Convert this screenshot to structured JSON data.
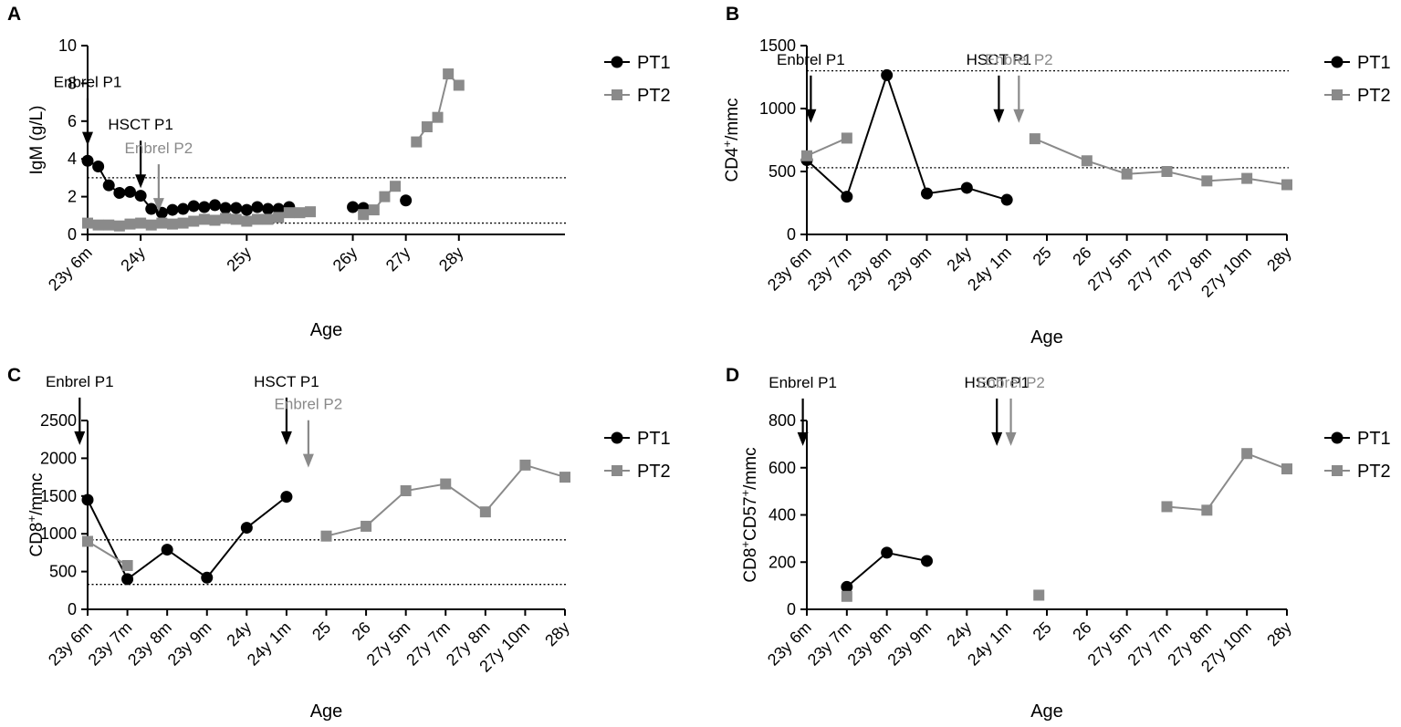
{
  "colors": {
    "pt1": "#000000",
    "pt2": "#8a8a8a"
  },
  "charts": [
    {
      "id": "A",
      "type": "line",
      "letter": "A",
      "ylabel": "IgM (g/L)",
      "xlabel": "Age",
      "xlim": [
        0,
        4.5
      ],
      "ylim": [
        0,
        10
      ],
      "yticks": [
        "0",
        "2",
        "4",
        "6",
        "8",
        "10"
      ],
      "ytick_values": [
        0,
        2,
        4,
        6,
        8,
        10
      ],
      "xtick_values": [
        0,
        0.5,
        1.5,
        2.5,
        3.0,
        3.5
      ],
      "xtick_labels": [
        "23y 6m",
        "24y",
        "25y",
        "26y",
        "27y",
        "28y"
      ],
      "ref_lines": [
        3,
        0.6
      ],
      "legend": [
        "PT1",
        "PT2"
      ],
      "annotations": [
        {
          "label": "Enbrel P1",
          "x": 0,
          "top": 4.8,
          "series": "pt1"
        },
        {
          "label": "HSCT P1",
          "x": 0.5,
          "top": 2.55,
          "series": "pt1"
        },
        {
          "label": "Enbrel P2",
          "x": 0.67,
          "top": 1.3,
          "series": "pt2"
        }
      ],
      "series": [
        {
          "name": "PT1",
          "key": "pt1",
          "marker": "circle",
          "segments": [
            [
              [
                0,
                3.9
              ],
              [
                0.1,
                3.6
              ],
              [
                0.2,
                2.6
              ],
              [
                0.3,
                2.2
              ],
              [
                0.4,
                2.25
              ],
              [
                0.5,
                2.05
              ],
              [
                0.6,
                1.35
              ],
              [
                0.7,
                1.15
              ],
              [
                0.8,
                1.3
              ],
              [
                0.9,
                1.35
              ],
              [
                1.0,
                1.5
              ],
              [
                1.1,
                1.45
              ],
              [
                1.2,
                1.55
              ],
              [
                1.3,
                1.4
              ],
              [
                1.4,
                1.4
              ],
              [
                1.5,
                1.3
              ],
              [
                1.6,
                1.45
              ],
              [
                1.7,
                1.35
              ],
              [
                1.8,
                1.35
              ],
              [
                1.9,
                1.45
              ]
            ],
            [
              [
                2.5,
                1.45
              ],
              [
                2.6,
                1.4
              ]
            ],
            [
              [
                3.0,
                1.8
              ]
            ]
          ]
        },
        {
          "name": "PT2",
          "key": "pt2",
          "marker": "square",
          "segments": [
            [
              [
                0,
                0.6
              ],
              [
                0.1,
                0.5
              ],
              [
                0.2,
                0.5
              ],
              [
                0.3,
                0.45
              ],
              [
                0.4,
                0.55
              ],
              [
                0.5,
                0.6
              ],
              [
                0.6,
                0.5
              ],
              [
                0.7,
                0.6
              ],
              [
                0.8,
                0.55
              ],
              [
                0.9,
                0.6
              ],
              [
                1.0,
                0.7
              ],
              [
                1.1,
                0.8
              ],
              [
                1.2,
                0.75
              ],
              [
                1.3,
                0.85
              ],
              [
                1.4,
                0.8
              ],
              [
                1.5,
                0.7
              ],
              [
                1.6,
                0.8
              ],
              [
                1.7,
                0.8
              ],
              [
                1.8,
                0.9
              ],
              [
                1.9,
                1.15
              ],
              [
                2.0,
                1.15
              ],
              [
                2.1,
                1.2
              ]
            ],
            [
              [
                2.6,
                1.05
              ],
              [
                2.7,
                1.3
              ],
              [
                2.8,
                2.0
              ],
              [
                2.9,
                2.55
              ]
            ],
            [
              [
                3.1,
                4.9
              ],
              [
                3.2,
                5.7
              ],
              [
                3.3,
                6.2
              ],
              [
                3.4,
                8.5
              ],
              [
                3.5,
                7.9
              ]
            ]
          ]
        }
      ]
    },
    {
      "id": "B",
      "type": "line",
      "letter": "B",
      "ylabel_main": "CD4",
      "ylabel_sup": "+",
      "ylabel_tail": "/mmc",
      "xlabel": "Age",
      "xlim": [
        0,
        12
      ],
      "ylim": [
        0,
        1500
      ],
      "yticks": [
        "0",
        "500",
        "1000",
        "1500"
      ],
      "ytick_values": [
        0,
        500,
        1000,
        1500
      ],
      "xtick_values": [
        0,
        1,
        2,
        3,
        4,
        5,
        6,
        7,
        8,
        9,
        10,
        11,
        12
      ],
      "xtick_labels": [
        "23y 6m",
        "23y 7m",
        "23y 8m",
        "23y 9m",
        "24y",
        "24y 1m",
        "25",
        "26",
        "27y 5m",
        "27y 7m",
        "27y 8m",
        "27y 10m",
        "28y"
      ],
      "ref_lines": [
        1300,
        530
      ],
      "legend": [
        "PT1",
        "PT2"
      ],
      "annotations": [
        {
          "label": "Enbrel P1",
          "x": 0.1,
          "top": 900,
          "series": "pt1"
        },
        {
          "label": "HSCT P1",
          "x": 4.8,
          "top": 900,
          "series": "pt1"
        },
        {
          "label": "Enbrel P2",
          "x": 5.3,
          "top": 900,
          "series": "pt2"
        }
      ],
      "series": [
        {
          "name": "PT1",
          "key": "pt1",
          "marker": "circle",
          "segments": [
            [
              [
                0,
                590
              ],
              [
                1,
                300
              ],
              [
                2,
                1265
              ],
              [
                3,
                325
              ],
              [
                4,
                370
              ],
              [
                5,
                275
              ]
            ]
          ]
        },
        {
          "name": "PT2",
          "key": "pt2",
          "marker": "square",
          "segments": [
            [
              [
                0,
                625
              ],
              [
                1,
                765
              ]
            ],
            [
              [
                5.7,
                760
              ],
              [
                7,
                585
              ],
              [
                8,
                480
              ],
              [
                9,
                500
              ],
              [
                10,
                425
              ],
              [
                11,
                445
              ],
              [
                12,
                395
              ]
            ]
          ]
        }
      ]
    },
    {
      "id": "C",
      "type": "line",
      "letter": "C",
      "ylabel_main": "CD8",
      "ylabel_sup": "+",
      "ylabel_tail": "/mmc",
      "xlabel": "Age",
      "xlim": [
        0,
        12
      ],
      "ylim": [
        0,
        2500
      ],
      "yticks": [
        "0",
        "500",
        "1000",
        "1500",
        "2000",
        "2500"
      ],
      "ytick_values": [
        0,
        500,
        1000,
        1500,
        2000,
        2500
      ],
      "xtick_values": [
        0,
        1,
        2,
        3,
        4,
        5,
        6,
        7,
        8,
        9,
        10,
        11,
        12
      ],
      "xtick_labels": [
        "23y 6m",
        "23y 7m",
        "23y 8m",
        "23y 9m",
        "24y",
        "24y 1m",
        "25",
        "26",
        "27y 5m",
        "27y 7m",
        "27y 8m",
        "27y 10m",
        "28y"
      ],
      "ref_lines": [
        920,
        330
      ],
      "legend": [
        "PT1",
        "PT2"
      ],
      "annotations": [
        {
          "label": "Enbrel P1",
          "x": -0.2,
          "top": 2200,
          "series": "pt1"
        },
        {
          "label": "HSCT P1",
          "x": 5.0,
          "top": 2200,
          "series": "pt1"
        },
        {
          "label": "Enbrel P2",
          "x": 5.55,
          "top": 1900,
          "series": "pt2"
        }
      ],
      "series": [
        {
          "name": "PT1",
          "key": "pt1",
          "marker": "circle",
          "segments": [
            [
              [
                0,
                1450
              ],
              [
                1,
                400
              ],
              [
                2,
                790
              ],
              [
                3,
                420
              ],
              [
                4,
                1080
              ],
              [
                5,
                1490
              ]
            ]
          ]
        },
        {
          "name": "PT2",
          "key": "pt2",
          "marker": "square",
          "segments": [
            [
              [
                0,
                900
              ],
              [
                1,
                580
              ]
            ],
            [
              [
                6,
                970
              ],
              [
                7,
                1100
              ],
              [
                8,
                1570
              ],
              [
                9,
                1660
              ],
              [
                10,
                1290
              ],
              [
                11,
                1910
              ],
              [
                12,
                1750
              ]
            ]
          ]
        }
      ]
    },
    {
      "id": "D",
      "type": "line",
      "letter": "D",
      "ylabel_main": "CD8",
      "ylabel_sup": "+",
      "ylabel_mid": "CD57",
      "ylabel_sup2": "+",
      "ylabel_tail": "/mmc",
      "xlabel": "Age",
      "xlim": [
        0,
        12
      ],
      "ylim": [
        0,
        800
      ],
      "yticks": [
        "0",
        "200",
        "400",
        "600",
        "800"
      ],
      "ytick_values": [
        0,
        200,
        400,
        600,
        800
      ],
      "xtick_values": [
        0,
        1,
        2,
        3,
        4,
        5,
        6,
        7,
        8,
        9,
        10,
        11,
        12
      ],
      "xtick_labels": [
        "23y 6m",
        "23y 7m",
        "23y 8m",
        "23y 9m",
        "24y",
        "24y 1m",
        "25",
        "26",
        "27y 5m",
        "27y 7m",
        "27y 8m",
        "27y 10m",
        "28y"
      ],
      "ref_lines": [],
      "legend": [
        "PT1",
        "PT2"
      ],
      "annotations": [
        {
          "label": "Enbrel P1",
          "x": -0.1,
          "top": 700,
          "series": "pt1"
        },
        {
          "label": "HSCT P1",
          "x": 4.75,
          "top": 700,
          "series": "pt1"
        },
        {
          "label": "Enbrel P2",
          "x": 5.1,
          "top": 700,
          "series": "pt2"
        }
      ],
      "series": [
        {
          "name": "PT1",
          "key": "pt1",
          "marker": "circle",
          "segments": [
            [
              [
                1,
                95
              ],
              [
                2,
                240
              ],
              [
                3,
                205
              ]
            ]
          ]
        },
        {
          "name": "PT2",
          "key": "pt2",
          "marker": "square",
          "segments": [
            [
              [
                1,
                55
              ]
            ],
            [
              [
                5.8,
                60
              ]
            ],
            [
              [
                9,
                435
              ],
              [
                10,
                420
              ],
              [
                11,
                660
              ],
              [
                12,
                595
              ]
            ]
          ]
        }
      ]
    }
  ]
}
